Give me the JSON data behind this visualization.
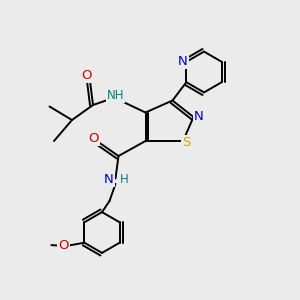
{
  "bg_color": "#ebebeb",
  "atom_colors": {
    "C": "#000000",
    "N": "#0000cc",
    "O": "#cc0000",
    "S": "#ccaa00",
    "NH_amide": "#008080"
  },
  "font_size": 8.5,
  "figsize": [
    3.0,
    3.0
  ],
  "dpi": 100,
  "lw": 1.4
}
